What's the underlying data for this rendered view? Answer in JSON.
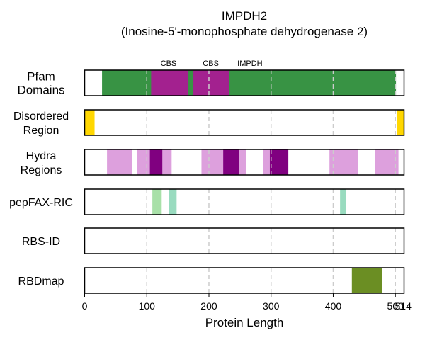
{
  "chart_data": {
    "type": "track",
    "title": "IMPDH2",
    "subtitle": "(Inosine-5'-monophosphate dehydrogenase 2)",
    "xlabel": "Protein Length",
    "xlim": [
      0,
      514
    ],
    "protein_length": 514,
    "xticks": [
      0,
      100,
      200,
      300,
      400,
      500,
      514
    ],
    "xtick_labels": [
      "0",
      "100",
      "200",
      "300",
      "400",
      "500",
      "514"
    ],
    "gridlines": [
      100,
      200,
      300,
      400,
      500
    ],
    "domain_labels": [
      {
        "text": "CBS",
        "x": 135
      },
      {
        "text": "CBS",
        "x": 203
      },
      {
        "text": "IMPDH",
        "x": 266
      }
    ],
    "tracks": [
      {
        "name": "Pfam Domains",
        "label_lines": [
          "Pfam",
          "Domains"
        ],
        "segments": [
          {
            "start": 28,
            "end": 501,
            "color": "#389344"
          },
          {
            "start": 107,
            "end": 167,
            "color": "#a3218f"
          },
          {
            "start": 175,
            "end": 232,
            "color": "#a3218f"
          }
        ]
      },
      {
        "name": "Disordered Region",
        "label_lines": [
          "Disordered",
          "Region"
        ],
        "segments": [
          {
            "start": 0,
            "end": 16,
            "color": "#ffd700"
          },
          {
            "start": 503,
            "end": 514,
            "color": "#ffd700"
          }
        ]
      },
      {
        "name": "Hydra Regions",
        "label_lines": [
          "Hydra",
          "Regions"
        ],
        "segments": [
          {
            "start": 36,
            "end": 76,
            "color": "#dda0dd"
          },
          {
            "start": 84,
            "end": 140,
            "color": "#dda0dd"
          },
          {
            "start": 105,
            "end": 125,
            "color": "#800080"
          },
          {
            "start": 188,
            "end": 260,
            "color": "#dda0dd"
          },
          {
            "start": 223,
            "end": 248,
            "color": "#800080"
          },
          {
            "start": 287,
            "end": 328,
            "color": "#dda0dd"
          },
          {
            "start": 298,
            "end": 327,
            "color": "#800080"
          },
          {
            "start": 394,
            "end": 440,
            "color": "#dda0dd"
          },
          {
            "start": 467,
            "end": 505,
            "color": "#dda0dd"
          }
        ]
      },
      {
        "name": "pepFAX-RIC",
        "label_lines": [
          "pepFAX-RIC"
        ],
        "segments": [
          {
            "start": 109,
            "end": 124,
            "color": "#a8e0a8"
          },
          {
            "start": 136,
            "end": 148,
            "color": "#99dbbf"
          },
          {
            "start": 411,
            "end": 421,
            "color": "#99dbbf"
          }
        ]
      },
      {
        "name": "RBS-ID",
        "label_lines": [
          "RBS-ID"
        ],
        "segments": []
      },
      {
        "name": "RBDmap",
        "label_lines": [
          "RBDmap"
        ],
        "segments": [
          {
            "start": 430,
            "end": 479,
            "color": "#6b8e23"
          }
        ]
      }
    ]
  }
}
